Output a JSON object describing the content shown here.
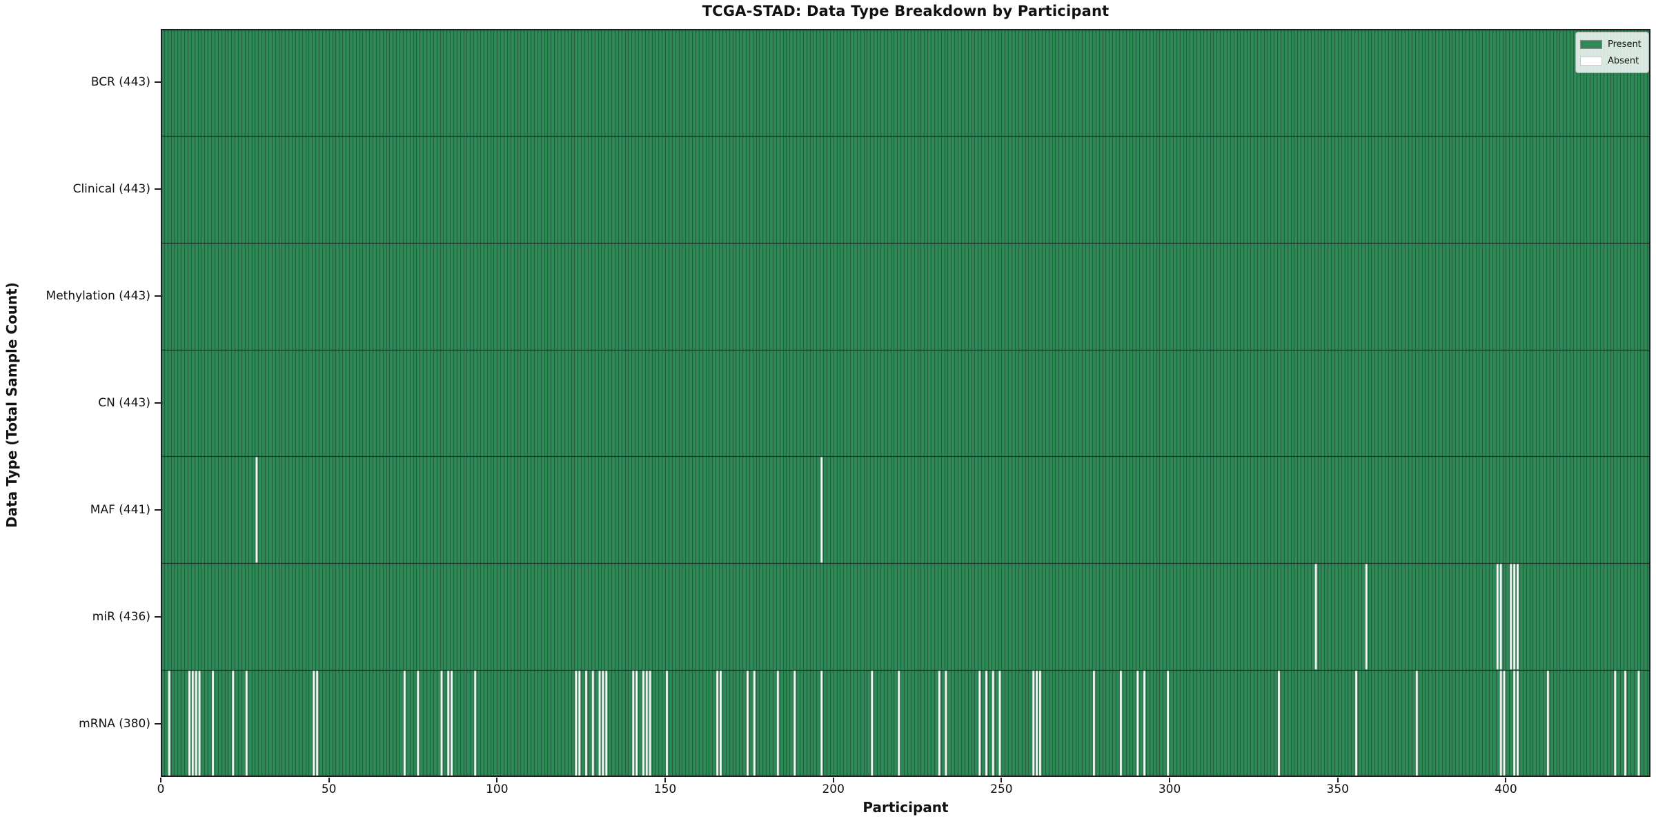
{
  "chart_data": {
    "type": "heatmap",
    "title": "TCGA-STAD: Data Type Breakdown by Participant",
    "xlabel": "Participant",
    "ylabel": "Data Type (Total Sample Count)",
    "x_ticks": [
      0,
      50,
      100,
      150,
      200,
      250,
      300,
      350,
      400
    ],
    "xlim": [
      0,
      443
    ],
    "n_participants": 443,
    "grid": false,
    "legend_position": "upper right",
    "legend": [
      {
        "label": "Present",
        "color": "#2e8b57"
      },
      {
        "label": "Absent",
        "color": "#ffffff"
      }
    ],
    "colors": {
      "present": "#2e8b57",
      "absent": "#ffffff",
      "bar_edge": "#24553a",
      "axis": "#1a1a1a"
    },
    "rows": [
      {
        "label": "BCR (443)",
        "name": "BCR",
        "total": 443,
        "absent_participants": []
      },
      {
        "label": "Clinical (443)",
        "name": "Clinical",
        "total": 443,
        "absent_participants": []
      },
      {
        "label": "Methylation (443)",
        "name": "Methylation",
        "total": 443,
        "absent_participants": []
      },
      {
        "label": "CN (443)",
        "name": "CN",
        "total": 443,
        "absent_participants": []
      },
      {
        "label": "MAF (441)",
        "name": "MAF",
        "total": 441,
        "absent_participants": [
          28,
          196
        ]
      },
      {
        "label": "miR (436)",
        "name": "miR",
        "total": 436,
        "absent_participants": [
          343,
          358,
          397,
          398,
          401,
          402,
          403
        ]
      },
      {
        "label": "mRNA (380)",
        "name": "mRNA",
        "total": 380,
        "absent_participants": [
          2,
          8,
          9,
          10,
          11,
          15,
          21,
          25,
          45,
          46,
          72,
          76,
          83,
          85,
          86,
          93,
          123,
          124,
          126,
          128,
          130,
          131,
          132,
          140,
          141,
          143,
          144,
          145,
          150,
          165,
          166,
          174,
          176,
          183,
          188,
          196,
          211,
          219,
          231,
          233,
          243,
          245,
          247,
          249,
          259,
          260,
          261,
          277,
          285,
          290,
          292,
          299,
          332,
          355,
          373,
          398,
          399,
          402,
          403,
          412,
          432,
          435,
          439
        ]
      }
    ]
  }
}
